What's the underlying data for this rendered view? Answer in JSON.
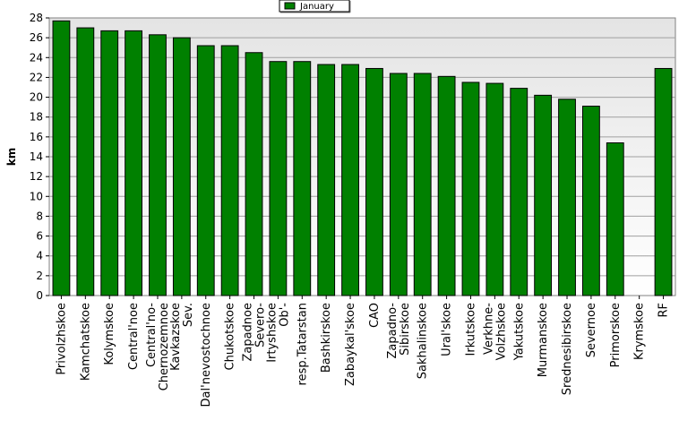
{
  "chart_data": {
    "type": "bar",
    "ylabel": "km",
    "ylim": [
      0,
      28
    ],
    "ytick_step": 2,
    "grid": true,
    "legend_position": "top-center",
    "series": [
      {
        "name": "January",
        "color": "#008000",
        "values": [
          27.7,
          27.0,
          26.7,
          26.7,
          26.3,
          26.0,
          25.2,
          25.2,
          24.5,
          23.6,
          23.6,
          23.3,
          23.3,
          22.9,
          22.4,
          22.4,
          22.1,
          21.5,
          21.4,
          20.9,
          20.2,
          19.8,
          19.1,
          15.4,
          0,
          22.9
        ]
      }
    ],
    "categories": [
      [
        "Privolzhskoe"
      ],
      [
        "Kamchatskoe"
      ],
      [
        "Kolymskoe"
      ],
      [
        "Central'noe"
      ],
      [
        "Central'no-",
        "Chernozemnoe"
      ],
      [
        "Kavkazskoe",
        "Sev."
      ],
      [
        "Dal'nevostochnoe"
      ],
      [
        "Chukotskoe"
      ],
      [
        "Zapadnoe",
        "Severo-"
      ],
      [
        "Irtyshskoe",
        "Ob'-"
      ],
      [
        "resp.Tatarstan"
      ],
      [
        "Bashkirskoe"
      ],
      [
        "Zabaykal'skoe"
      ],
      [
        "CAO"
      ],
      [
        "Zapadno-",
        "Sibirskoe"
      ],
      [
        "Sakhalinskoe"
      ],
      [
        "Ural'skoe"
      ],
      [
        "Irkutskoe"
      ],
      [
        "Verkhne-",
        "Volzhskoe"
      ],
      [
        "Yakutskoe"
      ],
      [
        "Murmanskoe"
      ],
      [
        "Srednesibirskoe"
      ],
      [
        "Severnoe"
      ],
      [
        "Primorskoe"
      ],
      [
        "Krymskoe"
      ],
      [
        "RF"
      ]
    ]
  }
}
